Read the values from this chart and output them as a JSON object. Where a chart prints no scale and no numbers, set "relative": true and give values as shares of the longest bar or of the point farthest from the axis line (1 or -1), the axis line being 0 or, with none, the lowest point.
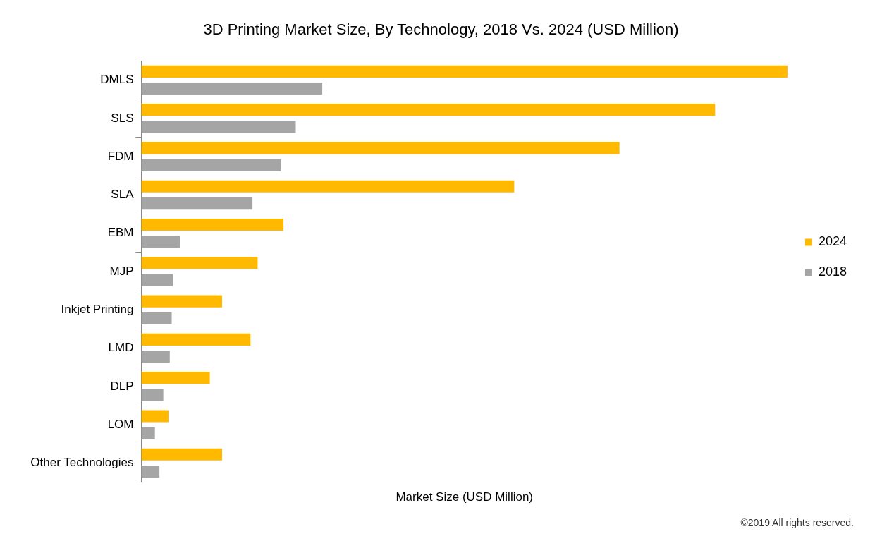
{
  "chart_data": {
    "type": "bar",
    "orientation": "horizontal",
    "relative": true,
    "title": "3D Printing Market Size, By Technology, 2018 Vs. 2024 (USD Million)",
    "xlabel": "Market Size (USD Million)",
    "legend": "right",
    "categories": [
      "DMLS",
      "SLS",
      "FDM",
      "SLA",
      "EBM",
      "MJP",
      "Inkjet Printing",
      "LMD",
      "DLP",
      "LOM",
      "Other Technologies"
    ],
    "series": [
      {
        "name": "2024",
        "color": "#ffb900",
        "values": [
          1,
          0.888,
          0.74,
          0.577,
          0.22,
          0.18,
          0.125,
          0.169,
          0.106,
          0.042,
          0.125
        ]
      },
      {
        "name": "2018",
        "color": "#a5a5a5",
        "values": [
          0.28,
          0.239,
          0.216,
          0.172,
          0.06,
          0.049,
          0.047,
          0.044,
          0.034,
          0.021,
          0.028
        ]
      }
    ],
    "annotations": [
      "©2019 All rights reserved."
    ]
  }
}
